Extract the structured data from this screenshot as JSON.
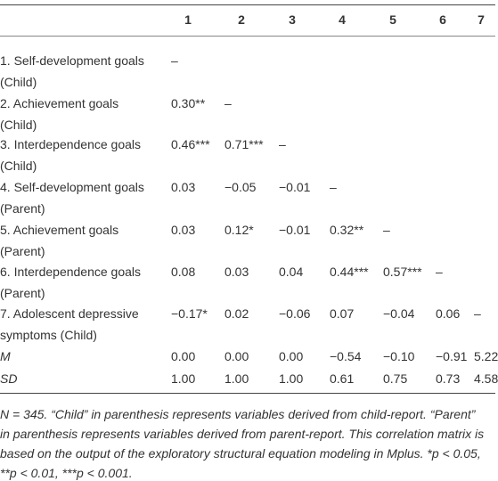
{
  "table": {
    "header": [
      "1",
      "2",
      "3",
      "4",
      "5",
      "6",
      "7"
    ],
    "rows": [
      {
        "label": [
          "1. Self-development goals",
          "(Child)"
        ],
        "cells": [
          "–"
        ]
      },
      {
        "label": [
          "2. Achievement goals",
          "(Child)"
        ],
        "cells": [
          "0.30**",
          "–"
        ]
      },
      {
        "label": [
          "3. Interdependence goals",
          "(Child)"
        ],
        "cells": [
          "0.46***",
          "0.71***",
          "–"
        ]
      },
      {
        "label": [
          "4. Self-development goals",
          "(Parent)"
        ],
        "cells": [
          "0.03",
          "−0.05",
          "−0.01",
          "–"
        ]
      },
      {
        "label": [
          "5. Achievement goals",
          "(Parent)"
        ],
        "cells": [
          "0.03",
          "0.12*",
          "−0.01",
          "0.32**",
          "–"
        ]
      },
      {
        "label": [
          "6. Interdependence goals",
          "(Parent)"
        ],
        "cells": [
          "0.08",
          "0.03",
          "0.04",
          "0.44***",
          "0.57***",
          "–"
        ]
      },
      {
        "label": [
          "7. Adolescent depressive",
          "symptoms (Child)"
        ],
        "cells": [
          "−0.17*",
          "0.02",
          "−0.06",
          "0.07",
          "−0.04",
          "0.06",
          "–"
        ]
      },
      {
        "label": [
          "M"
        ],
        "cells": [
          "0.00",
          "0.00",
          "0.00",
          "−0.54",
          "−0.10",
          "−0.91",
          "5.22"
        ],
        "italic": true
      },
      {
        "label": [
          "SD"
        ],
        "cells": [
          "1.00",
          "1.00",
          "1.00",
          "0.61",
          "0.75",
          "0.73",
          "4.58"
        ],
        "italic": true
      }
    ]
  },
  "note": [
    "N = 345. “Child” in parenthesis represents variables derived from child-report. “Parent”",
    "in parenthesis represents variables derived from parent-report. This correlation matrix is",
    "based on the output of the exploratory structural equation modeling in Mplus. *p < 0.05,",
    "**p < 0.01, ***p < 0.001."
  ]
}
